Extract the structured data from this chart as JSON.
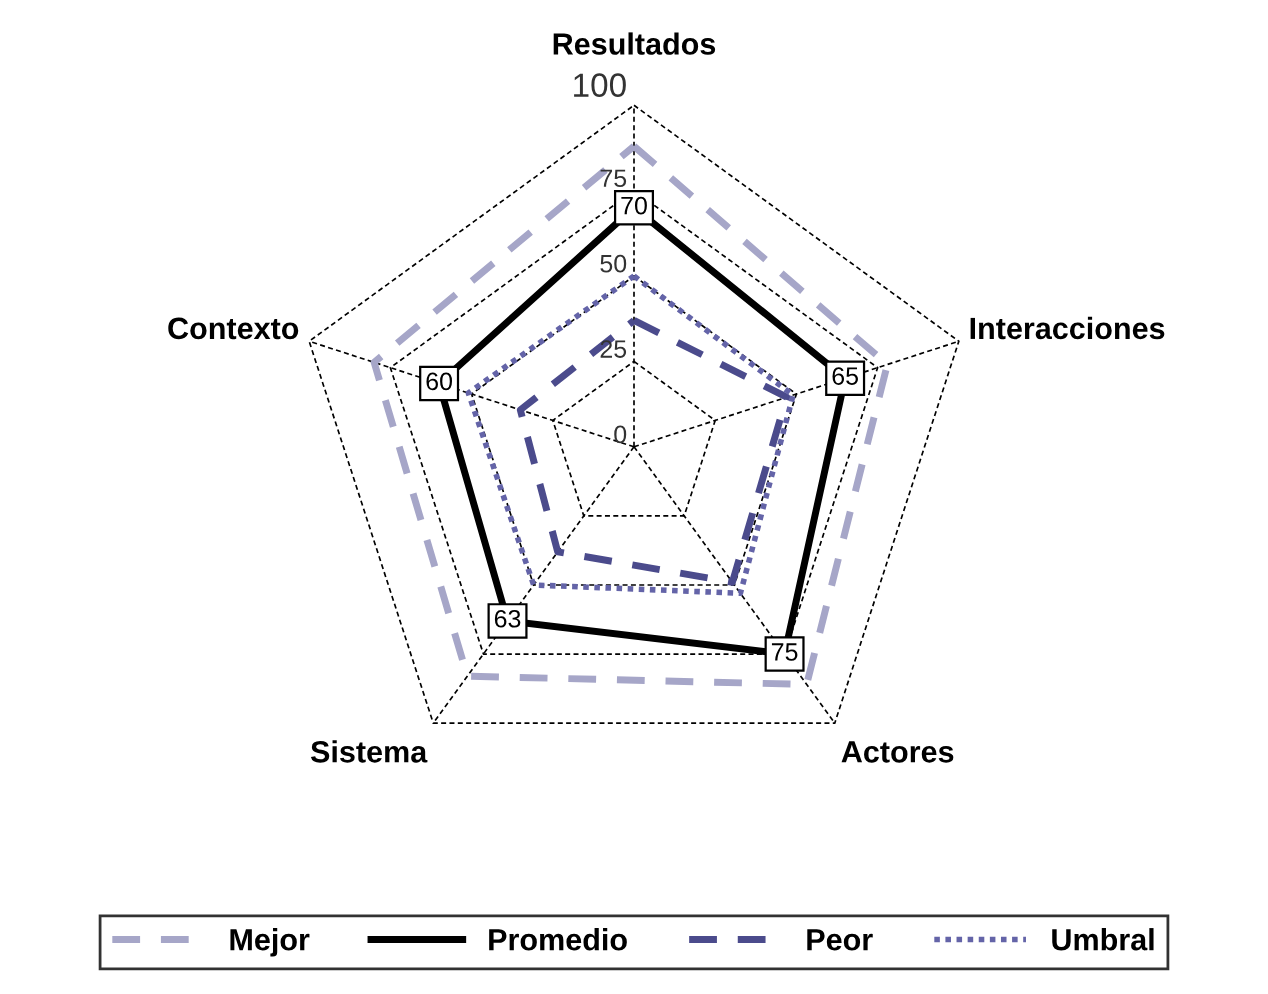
{
  "chart_data": {
    "type": "radar",
    "categories": [
      "Resultados",
      "Interacciones",
      "Actores",
      "Sistema",
      "Contexto"
    ],
    "series": [
      {
        "name": "Mejor",
        "color": "#a6a6c8",
        "line_style": "dashed",
        "values": [
          88,
          78,
          86,
          83,
          80
        ]
      },
      {
        "name": "Promedio",
        "color": "#000000",
        "line_style": "solid",
        "values": [
          70,
          65,
          75,
          63,
          60
        ],
        "value_labels": [
          "70",
          "65",
          "75",
          "63",
          "60"
        ]
      },
      {
        "name": "Peor",
        "color": "#4b4b8c",
        "line_style": "dashed",
        "values": [
          37,
          47,
          49,
          38,
          35
        ]
      },
      {
        "name": "Umbral",
        "color": "#6464a8",
        "line_style": "dotted",
        "values": [
          50,
          49,
          53,
          50,
          51
        ]
      }
    ],
    "ylim": [
      0,
      100
    ],
    "yticks": [
      {
        "value": 0,
        "label": "0"
      },
      {
        "value": 25,
        "label": "25"
      },
      {
        "value": 50,
        "label": "50"
      },
      {
        "value": 75,
        "label": "75"
      },
      {
        "value": 100,
        "label": "100"
      }
    ],
    "grid": true,
    "legend": "bottom"
  }
}
